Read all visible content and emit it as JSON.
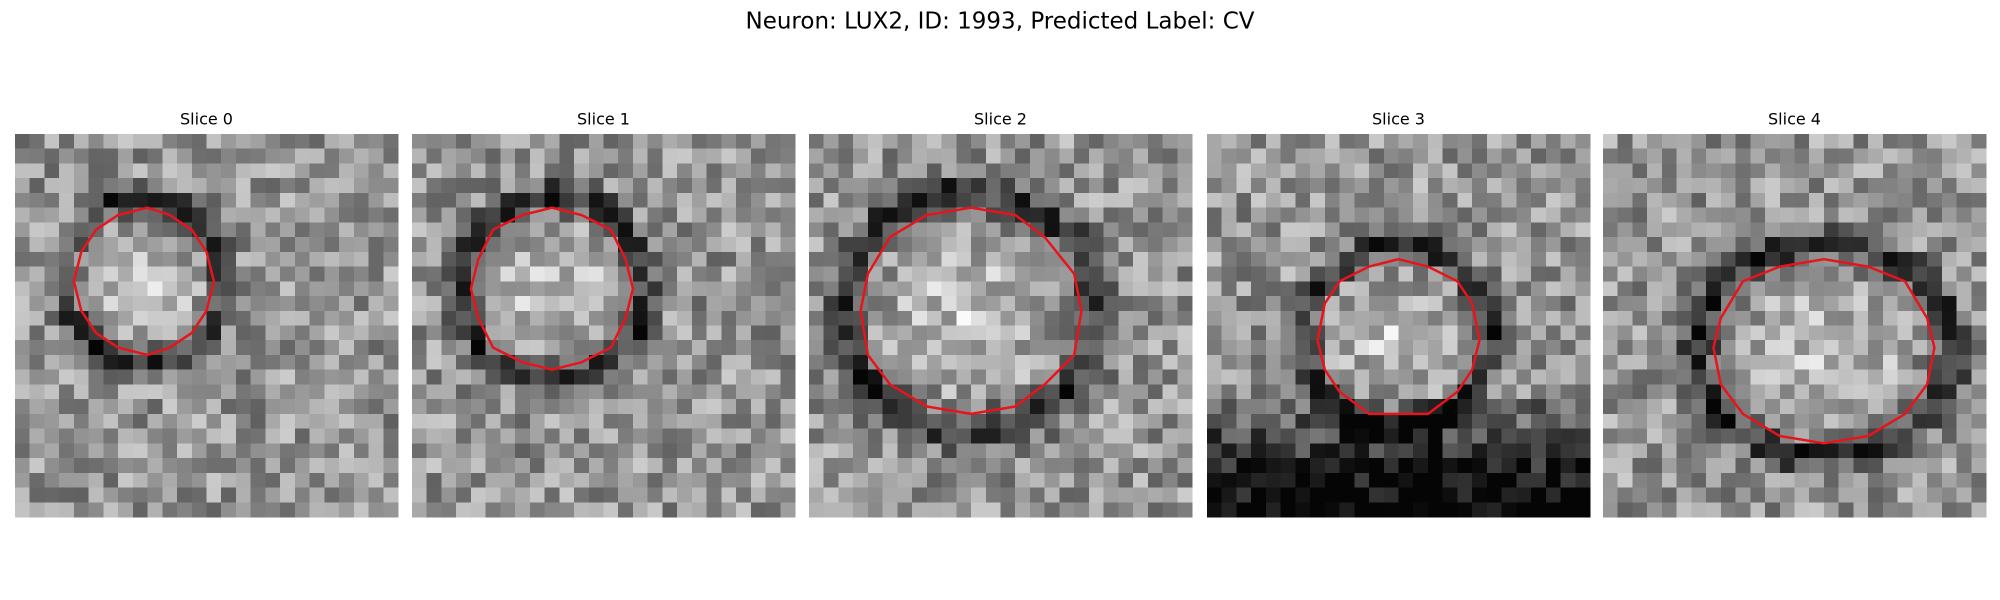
{
  "title": "Neuron: LUX2, ID: 1993, Predicted Label: CV",
  "panels": [
    {
      "title": "Slice 0"
    },
    {
      "title": "Slice 1"
    },
    {
      "title": "Slice 2"
    },
    {
      "title": "Slice 3"
    },
    {
      "title": "Slice 4"
    }
  ]
}
